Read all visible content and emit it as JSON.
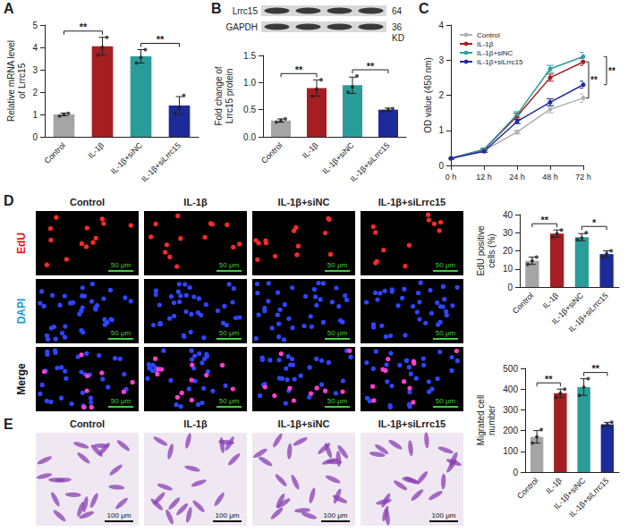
{
  "chart_data": [
    {
      "type": "bar",
      "panel": "A",
      "ylabel": "Relative mRNA level of Lrrc15",
      "categories": [
        "Control",
        "IL-1β",
        "IL-1β+siNC",
        "IL-1β+siLrrc15"
      ],
      "values": [
        1.0,
        4.05,
        3.6,
        1.4
      ],
      "errors": [
        0.06,
        0.4,
        0.3,
        0.4
      ],
      "points": [
        [
          0.93,
          1.0,
          1.05
        ],
        [
          3.65,
          4.0,
          4.45
        ],
        [
          3.3,
          3.55,
          3.9
        ],
        [
          1.05,
          1.3,
          1.85
        ]
      ],
      "colors": [
        "#a5a5a5",
        "#a51e22",
        "#2a9d9b",
        "#1c2b99"
      ],
      "ylim": [
        0,
        5
      ],
      "yticks": [
        0,
        1,
        2,
        3,
        4,
        5
      ],
      "grid": false,
      "significance": [
        {
          "between": [
            "Control",
            "IL-1β"
          ],
          "text": "**"
        },
        {
          "between": [
            "IL-1β+siNC",
            "IL-1β+siLrrc15"
          ],
          "text": "**"
        }
      ]
    },
    {
      "type": "bar",
      "panel": "B",
      "ylabel": "Fold change of Lrrc15 protein",
      "categories": [
        "Control",
        "IL-1β",
        "IL-1β+siNC",
        "IL-1β+siLrrc15"
      ],
      "values": [
        0.3,
        0.9,
        0.95,
        0.5
      ],
      "errors": [
        0.03,
        0.15,
        0.15,
        0.03
      ],
      "points": [
        [
          0.27,
          0.3,
          0.33
        ],
        [
          0.75,
          0.88,
          1.05
        ],
        [
          0.82,
          0.92,
          1.12
        ],
        [
          0.47,
          0.5,
          0.52
        ]
      ],
      "colors": [
        "#a5a5a5",
        "#a51e22",
        "#2a9d9b",
        "#1c2b99"
      ],
      "ylim": [
        0,
        1.5
      ],
      "yticks": [
        {
          "value": 0,
          "label": "0.0"
        },
        0.5,
        {
          "value": 1,
          "label": "1.0"
        },
        1.5
      ],
      "grid": false,
      "significance": [
        {
          "between": [
            "Control",
            "IL-1β"
          ],
          "text": "**"
        },
        {
          "between": [
            "IL-1β+siNC",
            "IL-1β+siLrrc15"
          ],
          "text": "**"
        }
      ]
    },
    {
      "type": "line",
      "panel": "C",
      "ylabel": "OD value (450 nm)",
      "categories": [
        "0 h",
        "12 h",
        "24 h",
        "48 h",
        "72 h"
      ],
      "series": [
        {
          "name": "Control",
          "color": "#b0b0b0",
          "marker": "circle",
          "values": [
            0.2,
            0.42,
            0.95,
            1.6,
            1.92
          ],
          "errors": [
            0.02,
            0.03,
            0.05,
            0.1,
            0.12
          ]
        },
        {
          "name": "IL-1β",
          "color": "#a51e22",
          "marker": "circle",
          "values": [
            0.2,
            0.45,
            1.4,
            2.5,
            2.95
          ],
          "errors": [
            0.02,
            0.03,
            0.08,
            0.1,
            0.1
          ]
        },
        {
          "name": "IL-1β+siNC",
          "color": "#2a9d9b",
          "marker": "circle",
          "values": [
            0.2,
            0.45,
            1.45,
            2.75,
            3.1
          ],
          "errors": [
            0.02,
            0.03,
            0.08,
            0.1,
            0.12
          ]
        },
        {
          "name": "IL-1β+siLrrc15",
          "color": "#1c2b99",
          "marker": "circle",
          "values": [
            0.2,
            0.4,
            1.25,
            1.8,
            2.3
          ],
          "errors": [
            0.02,
            0.03,
            0.06,
            0.1,
            0.1
          ]
        }
      ],
      "ylim": [
        0,
        4
      ],
      "yticks": [
        0,
        1,
        2,
        3,
        4
      ],
      "grid": false,
      "legend": "upper left",
      "significance": [
        {
          "between": [
            "IL-1β",
            "Control"
          ],
          "text": "**"
        },
        {
          "between": [
            "IL-1β+siNC",
            "IL-1β+siLrrc15"
          ],
          "text": "**"
        }
      ]
    },
    {
      "type": "bar",
      "panel": "D",
      "ylabel": "EdU positive cells (%)",
      "categories": [
        "Control",
        "IL-1β",
        "IL-1β+siNC",
        "IL-1β+siLrrc15"
      ],
      "values": [
        14.5,
        29.5,
        27.5,
        18.2
      ],
      "errors": [
        2,
        2,
        2,
        1.8
      ],
      "points": [
        [
          12.5,
          14.5,
          16.5
        ],
        [
          27.5,
          29.5,
          31.5
        ],
        [
          26,
          27,
          30
        ],
        [
          16.5,
          18.5,
          20
        ]
      ],
      "colors": [
        "#a5a5a5",
        "#a51e22",
        "#2a9d9b",
        "#1c2b99"
      ],
      "ylim": [
        0,
        40
      ],
      "yticks": [
        0,
        10,
        20,
        30,
        40
      ],
      "grid": false,
      "significance": [
        {
          "between": [
            "Control",
            "IL-1β"
          ],
          "text": "**"
        },
        {
          "between": [
            "IL-1β+siNC",
            "IL-1β+siLrrc15"
          ],
          "text": "*"
        }
      ]
    },
    {
      "type": "bar",
      "panel": "E",
      "ylabel": "Migrated cell number",
      "categories": [
        "Control",
        "IL-1β",
        "IL-1β+siNC",
        "IL-1β+siLrrc15"
      ],
      "values": [
        170,
        380,
        410,
        230
      ],
      "errors": [
        30,
        20,
        40,
        10
      ],
      "points": [
        [
          140,
          170,
          205
        ],
        [
          360,
          380,
          400
        ],
        [
          370,
          410,
          450
        ],
        [
          222,
          230,
          240
        ]
      ],
      "colors": [
        "#a5a5a5",
        "#a51e22",
        "#2a9d9b",
        "#1c2b99"
      ],
      "ylim": [
        0,
        500
      ],
      "yticks": [
        0,
        100,
        200,
        300,
        400,
        500
      ],
      "grid": false,
      "significance": [
        {
          "between": [
            "Control",
            "IL-1β"
          ],
          "text": "**"
        },
        {
          "between": [
            "IL-1β+siNC",
            "IL-1β+siLrrc15"
          ],
          "text": "**"
        }
      ]
    }
  ],
  "western_blot": {
    "panel": "B",
    "bands": [
      {
        "label": "Lrrc15",
        "size": 64
      },
      {
        "label": "GAPDH",
        "size": 36
      }
    ],
    "unit": "KD"
  },
  "image_panels": [
    {
      "panel": "D",
      "columns": [
        "Control",
        "IL-1β",
        "IL-1β+siNC",
        "IL-1β+siLrrc15"
      ],
      "rows": [
        {
          "label": "EdU",
          "color": "#e8141b"
        },
        {
          "label": "DAPI",
          "color": "#1a9ad6"
        },
        {
          "label": "Merge",
          "color": "#111111"
        }
      ],
      "scale_bar": "50 μm"
    },
    {
      "panel": "E",
      "columns": [
        "Control",
        "IL-1β",
        "IL-1β+siNC",
        "IL-1β+siLrrc15"
      ],
      "scale_bar": "100 μm"
    }
  ]
}
